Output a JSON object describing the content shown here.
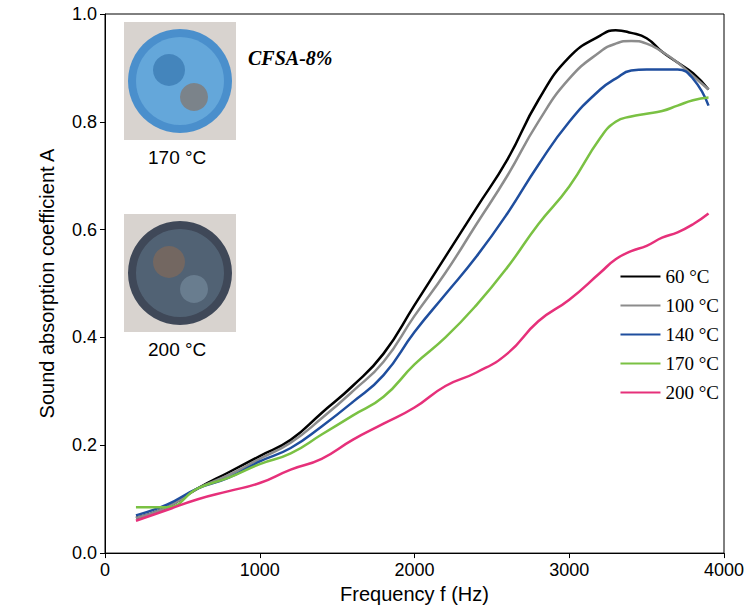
{
  "chart_data": {
    "type": "line",
    "x_label": "Frequency f (Hz)",
    "y_label": "Sound absorption coefficient A",
    "annotations": [
      "CFSA-8%",
      "170 °C",
      "200 °C"
    ],
    "x": [
      200,
      400,
      600,
      800,
      1000,
      1200,
      1400,
      1600,
      1800,
      2000,
      2200,
      2400,
      2600,
      2800,
      3000,
      3200,
      3300,
      3400,
      3500,
      3600,
      3700,
      3800,
      3900
    ],
    "series": [
      {
        "name": "60 °C",
        "color": "#000000",
        "values": [
          0.065,
          0.085,
          0.12,
          0.15,
          0.18,
          0.21,
          0.26,
          0.31,
          0.37,
          0.46,
          0.55,
          0.64,
          0.73,
          0.84,
          0.92,
          0.96,
          0.97,
          0.965,
          0.955,
          0.93,
          0.91,
          0.89,
          0.86
        ]
      },
      {
        "name": "100 °C",
        "color": "#8c8c8c",
        "values": [
          0.065,
          0.085,
          0.12,
          0.145,
          0.175,
          0.205,
          0.25,
          0.3,
          0.355,
          0.44,
          0.52,
          0.61,
          0.7,
          0.8,
          0.88,
          0.93,
          0.945,
          0.95,
          0.945,
          0.93,
          0.91,
          0.885,
          0.86
        ]
      },
      {
        "name": "140 °C",
        "color": "#1f4e9e",
        "values": [
          0.07,
          0.09,
          0.12,
          0.14,
          0.17,
          0.195,
          0.235,
          0.28,
          0.33,
          0.41,
          0.48,
          0.55,
          0.63,
          0.72,
          0.8,
          0.86,
          0.88,
          0.895,
          0.897,
          0.897,
          0.897,
          0.88,
          0.83
        ]
      },
      {
        "name": "170 °C",
        "color": "#7ac143",
        "values": [
          0.085,
          0.085,
          0.12,
          0.14,
          0.165,
          0.185,
          0.22,
          0.255,
          0.29,
          0.35,
          0.4,
          0.46,
          0.53,
          0.61,
          0.68,
          0.77,
          0.8,
          0.81,
          0.815,
          0.82,
          0.83,
          0.84,
          0.845
        ]
      },
      {
        "name": "200 °C",
        "color": "#e6307a",
        "values": [
          0.06,
          0.08,
          0.1,
          0.115,
          0.13,
          0.155,
          0.175,
          0.21,
          0.24,
          0.27,
          0.31,
          0.335,
          0.37,
          0.43,
          0.47,
          0.52,
          0.545,
          0.56,
          0.57,
          0.585,
          0.595,
          0.61,
          0.63
        ]
      }
    ],
    "xlim": [
      0,
      4000
    ],
    "xticks": [
      0,
      1000,
      2000,
      3000,
      4000
    ],
    "ylim": [
      0,
      1
    ],
    "yticks": [
      {
        "value": 0,
        "label": "0.0"
      },
      0.2,
      0.4,
      0.6,
      0.8,
      {
        "value": 1,
        "label": "1.0"
      }
    ],
    "legend": "lower right",
    "grid": false,
    "marker": "none",
    "line_style": "solid"
  }
}
